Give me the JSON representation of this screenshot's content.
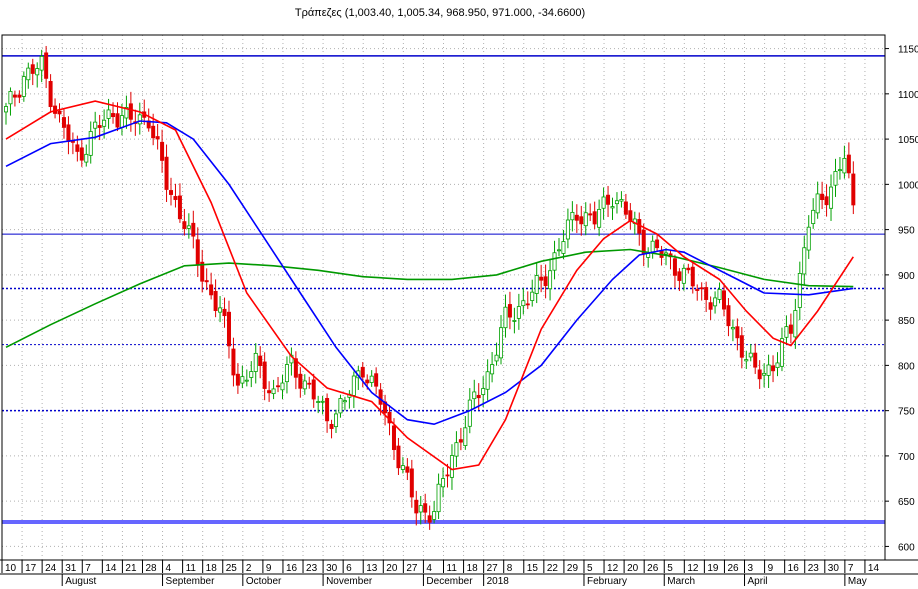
{
  "chart_data": {
    "type": "candlestick",
    "title": "Τράπεζες (1,003.40, 1,005.34, 968.950, 971.000, -34.6600)",
    "ylim": [
      585,
      1165
    ],
    "yticks": [
      600,
      650,
      700,
      750,
      800,
      850,
      900,
      950,
      1000,
      1050,
      1100,
      1150
    ],
    "grid": true,
    "colors": {
      "up": "#00a000",
      "down": "#e00000",
      "ma_short": "#ff0000",
      "ma_mid": "#0000ff",
      "ma_long": "#009900",
      "hline": "#0000cc",
      "hline_thick": "#6666ff"
    },
    "hlines": [
      {
        "value": 1142,
        "style": "solid",
        "width": 1.5
      },
      {
        "value": 945,
        "style": "solid",
        "width": 1
      },
      {
        "value": 885,
        "style": "dotted",
        "width": 1.5
      },
      {
        "value": 823,
        "style": "dotted",
        "width": 1
      },
      {
        "value": 750,
        "style": "dotted",
        "width": 1.5
      },
      {
        "value": 627,
        "style": "solid",
        "width": 4
      }
    ],
    "x_day_labels": [
      "10",
      "17",
      "24",
      "31",
      "7",
      "14",
      "21",
      "28",
      "4",
      "11",
      "18",
      "25",
      "2",
      "9",
      "16",
      "23",
      "30",
      "6",
      "13",
      "20",
      "27",
      "4",
      "11",
      "18",
      "27",
      "8",
      "15",
      "22",
      "29",
      "5",
      "12",
      "20",
      "26",
      "5",
      "12",
      "19",
      "26",
      "3",
      "9",
      "16",
      "23",
      "30",
      "7",
      "14"
    ],
    "x_month_labels": [
      {
        "label": "August",
        "at": 3
      },
      {
        "label": "September",
        "at": 8
      },
      {
        "label": "October",
        "at": 12
      },
      {
        "label": "November",
        "at": 16
      },
      {
        "label": "December",
        "at": 21
      },
      {
        "label": "2018",
        "at": 24
      },
      {
        "label": "February",
        "at": 29
      },
      {
        "label": "March",
        "at": 33
      },
      {
        "label": "April",
        "at": 37
      },
      {
        "label": "May",
        "at": 42
      }
    ],
    "close_anchors": [
      [
        0,
        1080
      ],
      [
        4,
        1120
      ],
      [
        8,
        1130
      ],
      [
        12,
        1070
      ],
      [
        16,
        1030
      ],
      [
        20,
        1060
      ],
      [
        24,
        1080
      ],
      [
        28,
        1070
      ],
      [
        32,
        1075
      ],
      [
        36,
        1000
      ],
      [
        40,
        960
      ],
      [
        44,
        900
      ],
      [
        48,
        860
      ],
      [
        52,
        780
      ],
      [
        56,
        800
      ],
      [
        60,
        770
      ],
      [
        64,
        800
      ],
      [
        68,
        775
      ],
      [
        72,
        740
      ],
      [
        76,
        760
      ],
      [
        80,
        800
      ],
      [
        84,
        760
      ],
      [
        88,
        700
      ],
      [
        92,
        640
      ],
      [
        96,
        640
      ],
      [
        100,
        700
      ],
      [
        104,
        750
      ],
      [
        108,
        790
      ],
      [
        112,
        850
      ],
      [
        116,
        870
      ],
      [
        120,
        890
      ],
      [
        124,
        930
      ],
      [
        128,
        970
      ],
      [
        132,
        960
      ],
      [
        136,
        990
      ],
      [
        140,
        960
      ],
      [
        144,
        930
      ],
      [
        148,
        920
      ],
      [
        152,
        900
      ],
      [
        156,
        880
      ],
      [
        160,
        870
      ],
      [
        164,
        830
      ],
      [
        168,
        790
      ],
      [
        172,
        800
      ],
      [
        176,
        840
      ],
      [
        180,
        960
      ],
      [
        184,
        990
      ],
      [
        188,
        1030
      ],
      [
        190,
        971
      ]
    ],
    "ma_short": [
      [
        0,
        1050
      ],
      [
        10,
        1080
      ],
      [
        20,
        1092
      ],
      [
        30,
        1080
      ],
      [
        38,
        1060
      ],
      [
        46,
        980
      ],
      [
        54,
        880
      ],
      [
        64,
        810
      ],
      [
        72,
        775
      ],
      [
        82,
        760
      ],
      [
        90,
        720
      ],
      [
        100,
        685
      ],
      [
        106,
        690
      ],
      [
        112,
        740
      ],
      [
        120,
        840
      ],
      [
        128,
        905
      ],
      [
        134,
        940
      ],
      [
        140,
        960
      ],
      [
        146,
        945
      ],
      [
        152,
        920
      ],
      [
        160,
        895
      ],
      [
        166,
        860
      ],
      [
        172,
        830
      ],
      [
        176,
        822
      ],
      [
        182,
        860
      ],
      [
        190,
        920
      ]
    ],
    "ma_mid": [
      [
        0,
        1020
      ],
      [
        10,
        1045
      ],
      [
        20,
        1052
      ],
      [
        30,
        1070
      ],
      [
        36,
        1068
      ],
      [
        42,
        1050
      ],
      [
        50,
        1000
      ],
      [
        58,
        940
      ],
      [
        66,
        880
      ],
      [
        74,
        820
      ],
      [
        82,
        770
      ],
      [
        90,
        740
      ],
      [
        96,
        735
      ],
      [
        104,
        750
      ],
      [
        112,
        770
      ],
      [
        120,
        800
      ],
      [
        128,
        850
      ],
      [
        136,
        895
      ],
      [
        142,
        922
      ],
      [
        148,
        928
      ],
      [
        152,
        925
      ],
      [
        158,
        910
      ],
      [
        164,
        895
      ],
      [
        170,
        880
      ],
      [
        180,
        878
      ],
      [
        190,
        885
      ]
    ],
    "ma_long": [
      [
        0,
        820
      ],
      [
        10,
        845
      ],
      [
        20,
        868
      ],
      [
        30,
        890
      ],
      [
        40,
        910
      ],
      [
        50,
        913
      ],
      [
        60,
        910
      ],
      [
        70,
        905
      ],
      [
        80,
        898
      ],
      [
        90,
        895
      ],
      [
        100,
        895
      ],
      [
        110,
        900
      ],
      [
        120,
        915
      ],
      [
        130,
        925
      ],
      [
        140,
        928
      ],
      [
        150,
        920
      ],
      [
        160,
        908
      ],
      [
        170,
        895
      ],
      [
        180,
        888
      ],
      [
        190,
        887
      ]
    ]
  }
}
